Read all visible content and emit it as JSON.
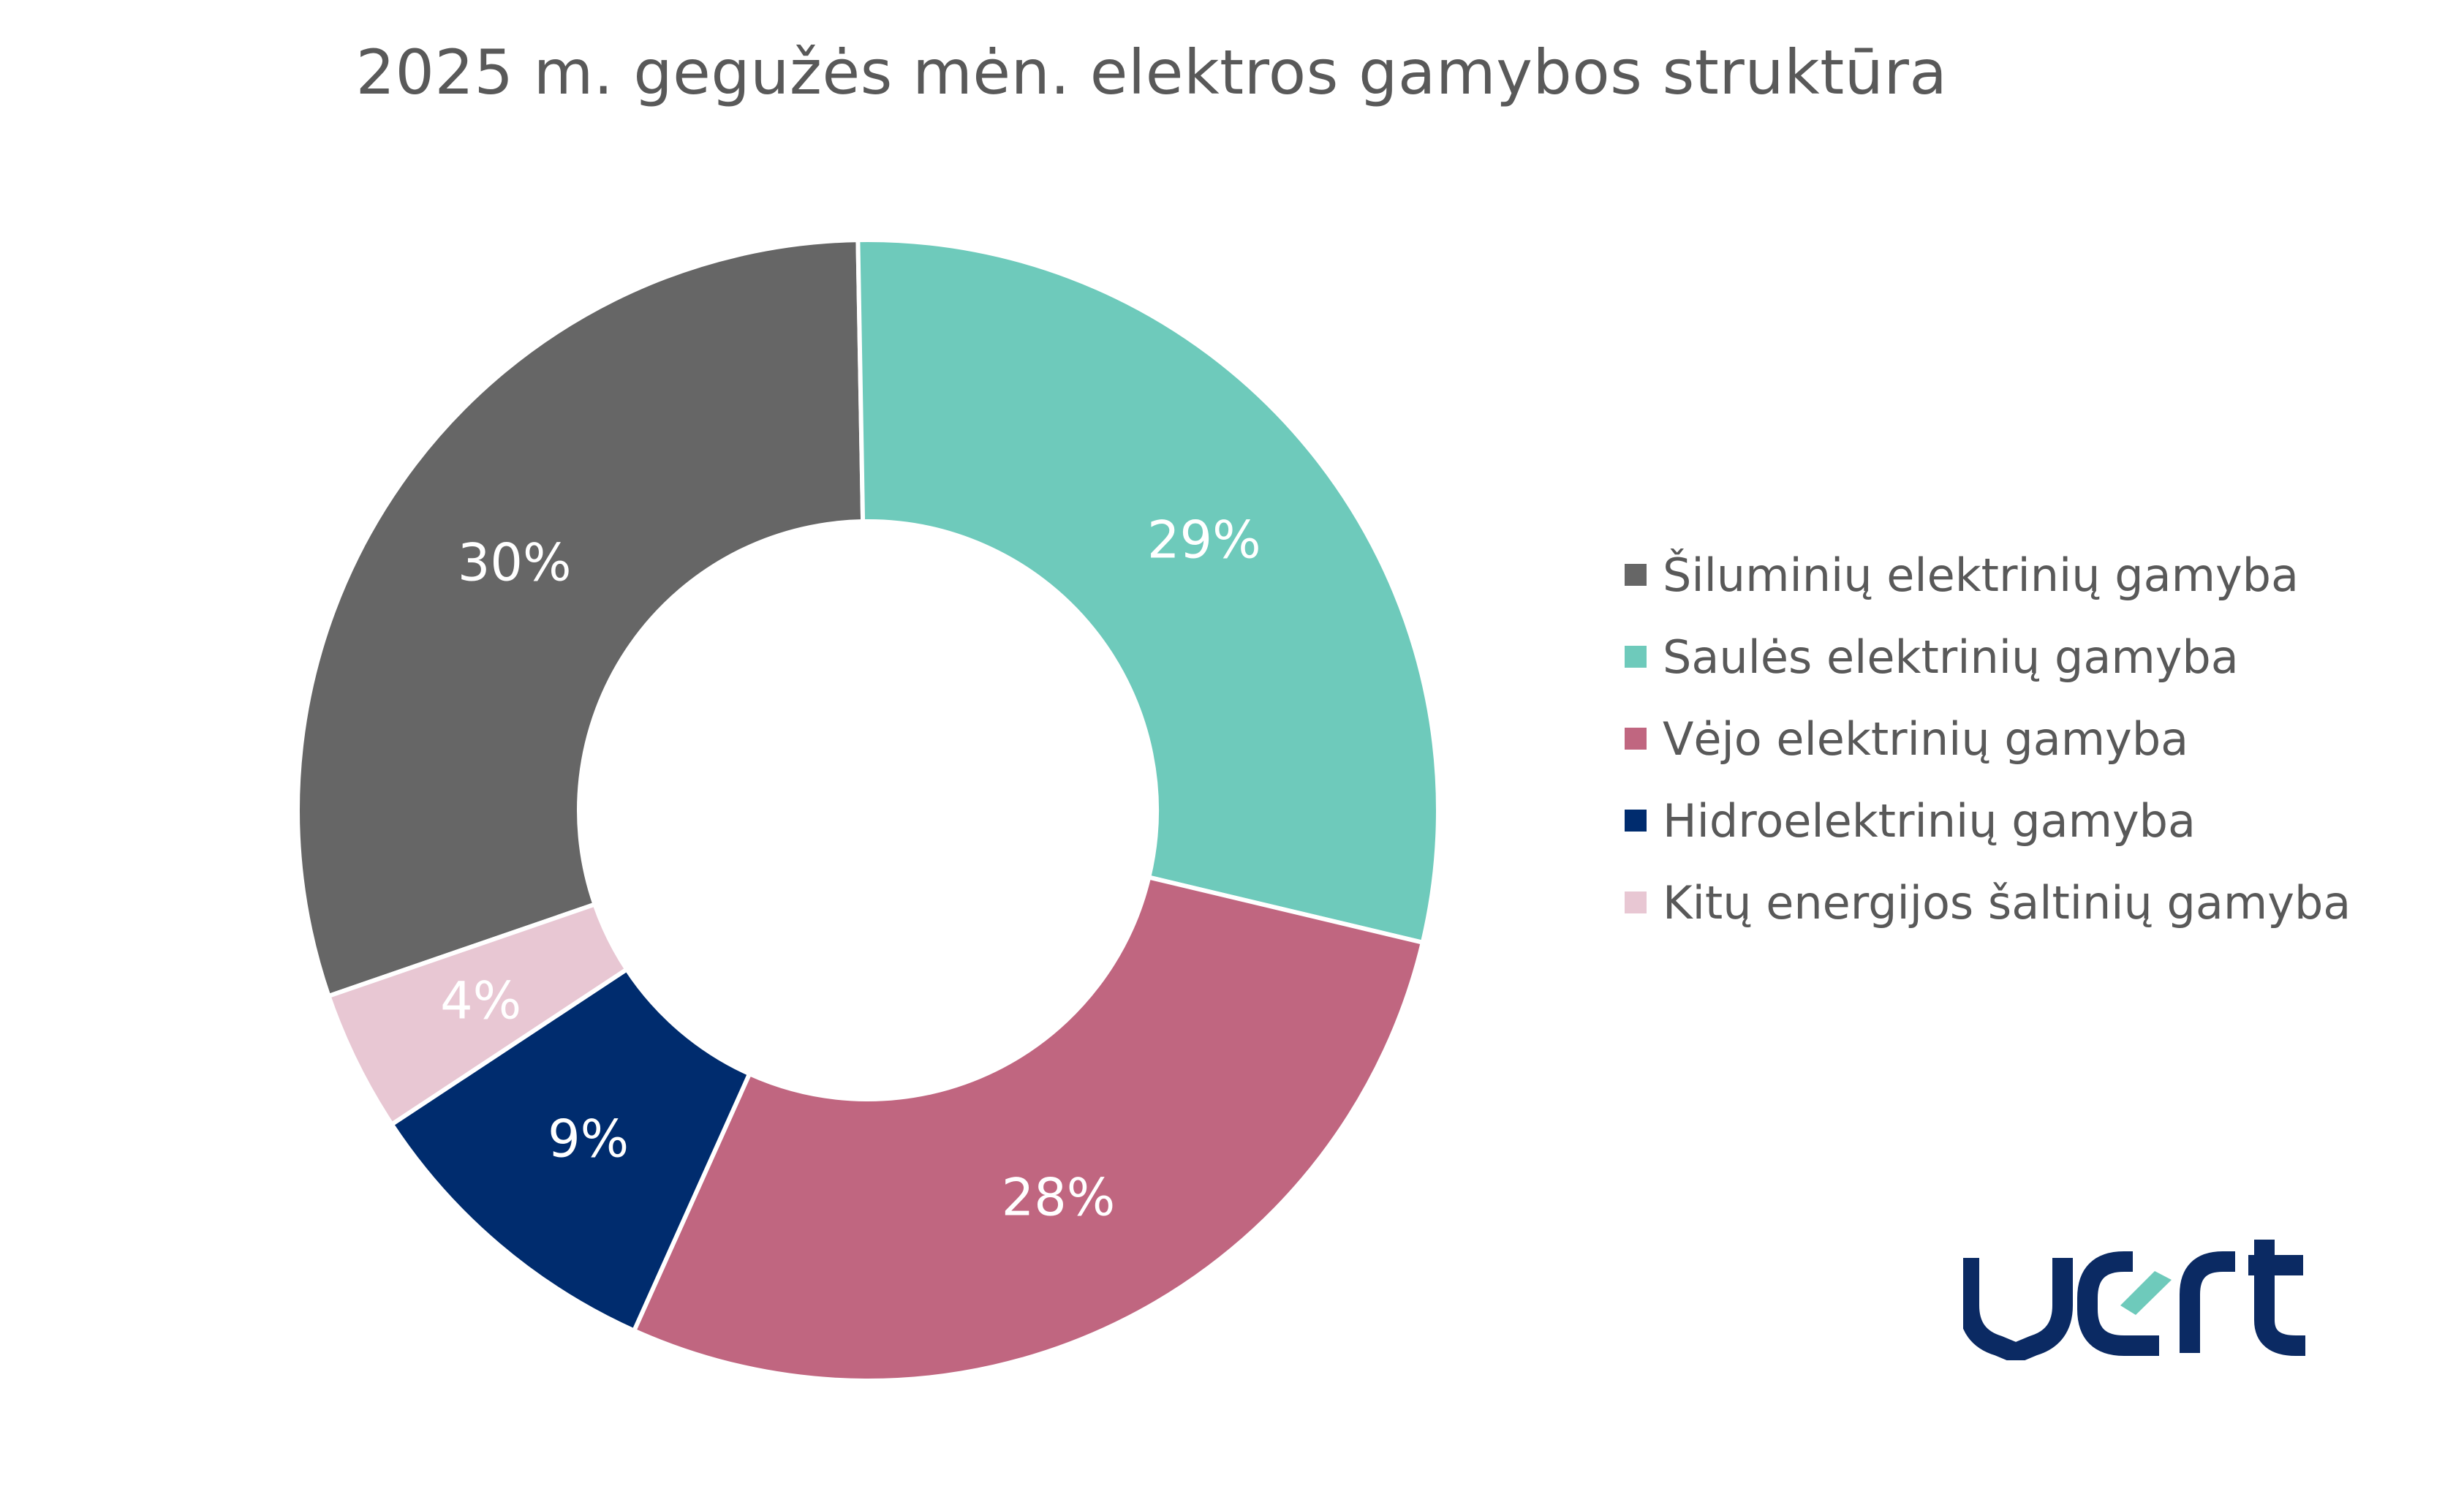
{
  "title": "2025 m. gegužės mėn. elektros gamybos struktūra",
  "chart_data": {
    "type": "pie",
    "title": "2025 m. gegužės mėn. elektros gamybos struktūra",
    "legend_position": "right",
    "series": [
      {
        "name": "Šiluminių elektrinių gamyba",
        "value": 30,
        "label": "30%",
        "color": "#666666"
      },
      {
        "name": "Saulės elektrinių gamyba",
        "value": 29,
        "label": "29%",
        "color": "#6ecabb"
      },
      {
        "name": "Vėjo elektrinių gamyba",
        "value": 28,
        "label": "28%",
        "color": "#c06680"
      },
      {
        "name": "Hidroelektrinių gamyba",
        "value": 9,
        "label": "9%",
        "color": "#002c6e"
      },
      {
        "name": "Kitų energijos šaltinių gamyba",
        "value": 4,
        "label": "4%",
        "color": "#e8c7d3"
      }
    ]
  },
  "legend": {
    "items": [
      {
        "label": "Šiluminių elektrinių gamyba",
        "color": "#666666"
      },
      {
        "label": "Saulės elektrinių gamyba",
        "color": "#6ecabb"
      },
      {
        "label": "Vėjo elektrinių gamyba",
        "color": "#c06680"
      },
      {
        "label": "Hidroelektrinių gamyba",
        "color": "#002c6e"
      },
      {
        "label": "Kitų energijos šaltinių gamyba",
        "color": "#e8c7d3"
      }
    ]
  },
  "logo": {
    "text": "vert",
    "colors": {
      "primary": "#0b2a63",
      "accent": "#6ecabb"
    }
  }
}
